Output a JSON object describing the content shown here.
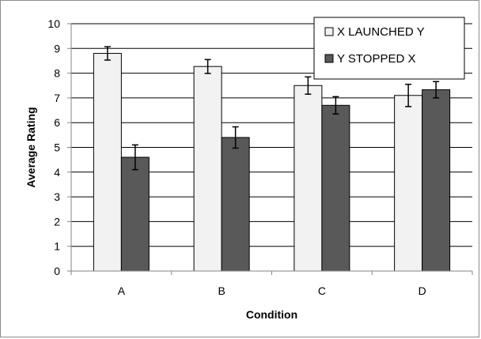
{
  "chart_data": {
    "type": "bar",
    "categories": [
      "A",
      "B",
      "C",
      "D"
    ],
    "series": [
      {
        "name": "X LAUNCHED Y",
        "color": "#f2f2f2",
        "values": [
          8.8,
          8.27,
          7.5,
          7.1
        ],
        "error": [
          0.27,
          0.28,
          0.35,
          0.45
        ]
      },
      {
        "name": "Y STOPPED X",
        "color": "#595959",
        "values": [
          4.6,
          5.4,
          6.7,
          7.33
        ],
        "error": [
          0.5,
          0.43,
          0.35,
          0.33
        ]
      }
    ],
    "xlabel": "Condition",
    "ylabel": "Average Rating",
    "ylim": [
      0,
      10
    ],
    "yticks": [
      "0",
      "1",
      "2",
      "3",
      "4",
      "5",
      "6",
      "7",
      "8",
      "9",
      "10"
    ],
    "grid": true,
    "legend_position": "top-right",
    "error_bars": true
  }
}
